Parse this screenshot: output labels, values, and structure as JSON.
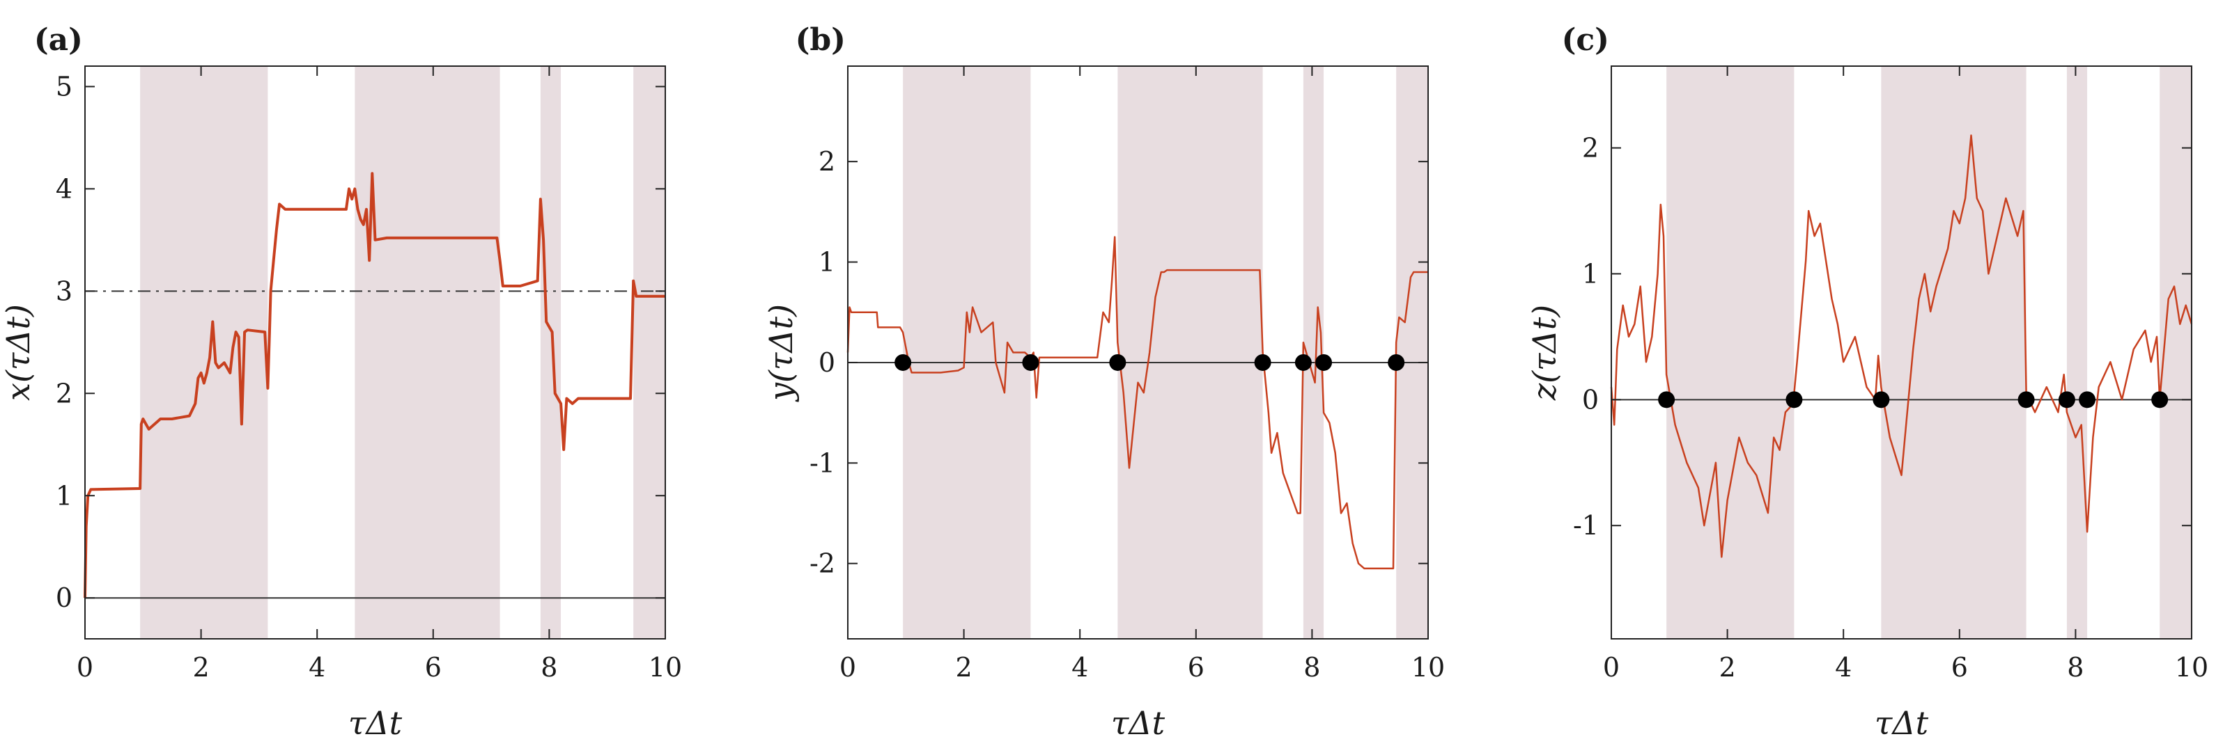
{
  "colors": {
    "series": "#c8401f",
    "shade": "#e8dde0",
    "reference": "#333333",
    "marker": "#000000",
    "axes": "#222222"
  },
  "chart_data": [
    {
      "type": "line",
      "panel_label": "(a)",
      "xlabel": "τΔt",
      "ylabel": "x(τΔt)",
      "xlim": [
        0,
        10
      ],
      "ylim": [
        -0.4,
        5.2
      ],
      "xticks": [
        "0",
        "2",
        "4",
        "6",
        "8",
        "10"
      ],
      "yticks": [
        "0",
        "1",
        "2",
        "3",
        "4",
        "5"
      ],
      "ytick_values": [
        0,
        1,
        2,
        3,
        4,
        5
      ],
      "shaded_intervals": [
        [
          0.95,
          3.15
        ],
        [
          4.65,
          7.15
        ],
        [
          7.85,
          8.2
        ],
        [
          9.45,
          10
        ]
      ],
      "reference_lines": [
        {
          "y": 0,
          "style": "solid"
        },
        {
          "y": 3,
          "style": "dashdot"
        }
      ],
      "markers": [],
      "series": [
        {
          "x": [
            0,
            0.02,
            0.05,
            0.1,
            0.95,
            0.97,
            1.0,
            1.1,
            1.3,
            1.5,
            1.8,
            1.9,
            1.95,
            2.0,
            2.05,
            2.1,
            2.15,
            2.2,
            2.25,
            2.3,
            2.4,
            2.5,
            2.55,
            2.6,
            2.65,
            2.7,
            2.75,
            2.8,
            3.1,
            3.15,
            3.18,
            3.2,
            3.25,
            3.3,
            3.35,
            3.45,
            4.0,
            4.5,
            4.55,
            4.6,
            4.65,
            4.7,
            4.75,
            4.8,
            4.85,
            4.9,
            4.95,
            5.0,
            5.2,
            7.1,
            7.15,
            7.2,
            7.3,
            7.5,
            7.8,
            7.85,
            7.9,
            7.95,
            8.0,
            8.05,
            8.1,
            8.2,
            8.25,
            8.3,
            8.4,
            8.5,
            9.4,
            9.45,
            9.5,
            9.6,
            9.8,
            10
          ],
          "y": [
            0,
            0.7,
            1.0,
            1.06,
            1.07,
            1.7,
            1.75,
            1.65,
            1.75,
            1.75,
            1.78,
            1.9,
            2.15,
            2.2,
            2.1,
            2.2,
            2.35,
            2.7,
            2.3,
            2.25,
            2.3,
            2.2,
            2.45,
            2.6,
            2.55,
            1.7,
            2.6,
            2.62,
            2.6,
            2.05,
            2.6,
            3.0,
            3.3,
            3.6,
            3.85,
            3.8,
            3.8,
            3.8,
            4.0,
            3.9,
            4.0,
            3.8,
            3.7,
            3.65,
            3.8,
            3.3,
            4.15,
            3.5,
            3.52,
            3.52,
            3.3,
            3.05,
            3.05,
            3.05,
            3.1,
            3.9,
            3.5,
            2.7,
            2.65,
            2.6,
            2.0,
            1.9,
            1.45,
            1.95,
            1.9,
            1.95,
            1.95,
            3.1,
            2.95,
            2.95,
            2.95,
            2.95
          ]
        }
      ]
    },
    {
      "type": "line",
      "panel_label": "(b)",
      "xlabel": "τΔt",
      "ylabel": "y(τΔt)",
      "xlim": [
        0,
        10
      ],
      "ylim": [
        -2.75,
        2.95
      ],
      "xticks": [
        "0",
        "2",
        "4",
        "6",
        "8",
        "10"
      ],
      "yticks": [
        "-2",
        "-1",
        "0",
        "1",
        "2"
      ],
      "ytick_values": [
        -2,
        -1,
        0,
        1,
        2
      ],
      "shaded_intervals": [
        [
          0.95,
          3.15
        ],
        [
          4.65,
          7.15
        ],
        [
          7.85,
          8.2
        ],
        [
          9.45,
          10
        ]
      ],
      "reference_lines": [
        {
          "y": 0,
          "style": "solid"
        }
      ],
      "markers": [
        0.95,
        3.15,
        4.65,
        7.15,
        7.85,
        8.2,
        9.45
      ],
      "series": [
        {
          "x": [
            0,
            0.03,
            0.06,
            0.5,
            0.52,
            0.9,
            0.95,
            1.05,
            1.1,
            1.6,
            1.9,
            2.0,
            2.05,
            2.1,
            2.15,
            2.3,
            2.5,
            2.55,
            2.7,
            2.75,
            2.85,
            3.05,
            3.15,
            3.2,
            3.25,
            3.3,
            3.4,
            4.3,
            4.4,
            4.5,
            4.55,
            4.6,
            4.65,
            4.75,
            4.85,
            5.0,
            5.1,
            5.2,
            5.3,
            5.4,
            5.45,
            5.5,
            7.1,
            7.15,
            7.25,
            7.3,
            7.4,
            7.5,
            7.75,
            7.8,
            7.85,
            7.9,
            8.05,
            8.1,
            8.15,
            8.2,
            8.3,
            8.4,
            8.5,
            8.6,
            8.7,
            8.8,
            8.9,
            9.4,
            9.45,
            9.5,
            9.6,
            9.7,
            9.75,
            10
          ],
          "y": [
            0.1,
            0.55,
            0.5,
            0.5,
            0.35,
            0.35,
            0.3,
            0.0,
            -0.1,
            -0.1,
            -0.08,
            -0.05,
            0.5,
            0.3,
            0.55,
            0.3,
            0.4,
            0.0,
            -0.3,
            0.2,
            0.1,
            0.1,
            0.05,
            0.1,
            -0.35,
            0.05,
            0.05,
            0.05,
            0.5,
            0.4,
            0.8,
            1.25,
            0.2,
            -0.3,
            -1.05,
            -0.2,
            -0.3,
            0.1,
            0.65,
            0.9,
            0.9,
            0.92,
            0.92,
            0.1,
            -0.5,
            -0.9,
            -0.7,
            -1.1,
            -1.5,
            -1.5,
            0.2,
            0.1,
            -0.2,
            0.55,
            0.3,
            -0.5,
            -0.6,
            -0.9,
            -1.5,
            -1.4,
            -1.8,
            -2.0,
            -2.05,
            -2.05,
            0.2,
            0.45,
            0.4,
            0.85,
            0.9,
            0.9
          ]
        }
      ]
    },
    {
      "type": "line",
      "panel_label": "(c)",
      "xlabel": "τΔt",
      "ylabel": "z(τΔt)",
      "xlim": [
        0,
        10
      ],
      "ylim": [
        -1.9,
        2.65
      ],
      "xticks": [
        "0",
        "2",
        "4",
        "6",
        "8",
        "10"
      ],
      "yticks": [
        "-1",
        "0",
        "1",
        "2"
      ],
      "ytick_values": [
        -1,
        0,
        1,
        2
      ],
      "shaded_intervals": [
        [
          0.95,
          3.15
        ],
        [
          4.65,
          7.15
        ],
        [
          7.85,
          8.2
        ],
        [
          9.45,
          10
        ]
      ],
      "reference_lines": [
        {
          "y": 0,
          "style": "solid"
        }
      ],
      "markers": [
        0.95,
        3.15,
        4.65,
        7.15,
        7.85,
        8.2,
        9.45
      ],
      "series": [
        {
          "x": [
            0,
            0.05,
            0.1,
            0.2,
            0.3,
            0.4,
            0.5,
            0.6,
            0.7,
            0.8,
            0.85,
            0.9,
            0.95,
            1.1,
            1.3,
            1.5,
            1.6,
            1.8,
            1.9,
            2.0,
            2.2,
            2.35,
            2.5,
            2.7,
            2.8,
            2.9,
            3.0,
            3.1,
            3.15,
            3.2,
            3.35,
            3.4,
            3.5,
            3.6,
            3.8,
            3.9,
            4.0,
            4.2,
            4.4,
            4.55,
            4.6,
            4.65,
            4.8,
            5.0,
            5.1,
            5.2,
            5.3,
            5.4,
            5.5,
            5.6,
            5.8,
            5.9,
            6.0,
            6.1,
            6.2,
            6.3,
            6.4,
            6.5,
            6.6,
            6.8,
            7.0,
            7.1,
            7.15,
            7.3,
            7.5,
            7.7,
            7.8,
            7.85,
            8.0,
            8.1,
            8.2,
            8.3,
            8.4,
            8.6,
            8.8,
            9.0,
            9.2,
            9.3,
            9.4,
            9.45,
            9.6,
            9.7,
            9.8,
            9.9,
            10
          ],
          "y": [
            0.1,
            -0.2,
            0.4,
            0.75,
            0.5,
            0.6,
            0.9,
            0.3,
            0.5,
            1.0,
            1.55,
            1.3,
            0.2,
            -0.2,
            -0.5,
            -0.7,
            -1.0,
            -0.5,
            -1.25,
            -0.8,
            -0.3,
            -0.5,
            -0.6,
            -0.9,
            -0.3,
            -0.4,
            -0.1,
            -0.05,
            0.05,
            0.3,
            1.1,
            1.5,
            1.3,
            1.4,
            0.8,
            0.6,
            0.3,
            0.5,
            0.1,
            0.0,
            0.35,
            0.1,
            -0.3,
            -0.6,
            -0.1,
            0.4,
            0.8,
            1.0,
            0.7,
            0.9,
            1.2,
            1.5,
            1.4,
            1.6,
            2.1,
            1.6,
            1.5,
            1.0,
            1.2,
            1.6,
            1.3,
            1.5,
            0.05,
            -0.1,
            0.1,
            -0.1,
            0.2,
            -0.1,
            -0.3,
            -0.2,
            -1.05,
            -0.3,
            0.1,
            0.3,
            0.0,
            0.4,
            0.55,
            0.3,
            0.5,
            0.0,
            0.8,
            0.9,
            0.6,
            0.75,
            0.6
          ]
        }
      ]
    }
  ]
}
